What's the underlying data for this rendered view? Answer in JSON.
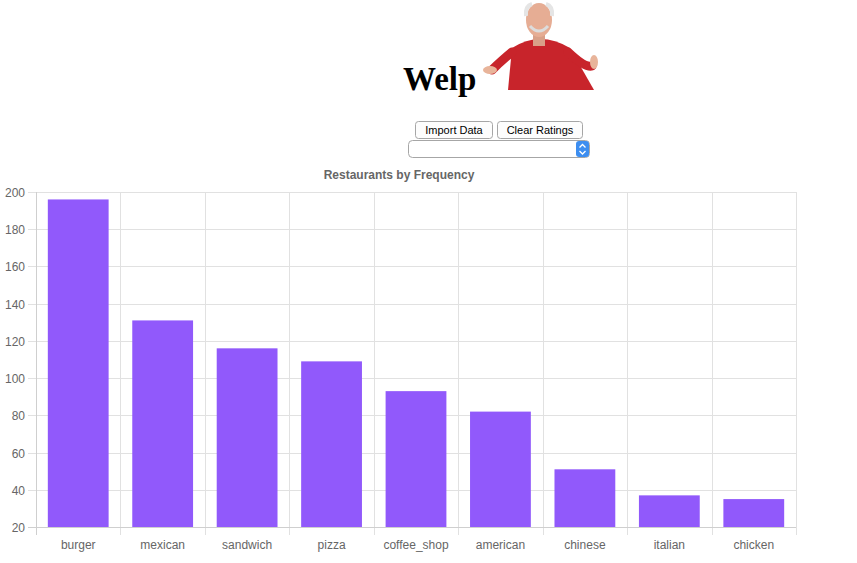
{
  "page": {
    "title": "Welp",
    "buttons": [
      "Import Data",
      "Clear Ratings"
    ]
  },
  "chart_data": {
    "type": "bar",
    "title": "Restaurants by Frequency",
    "categories": [
      "burger",
      "mexican",
      "sandwich",
      "pizza",
      "coffee_shop",
      "american",
      "chinese",
      "italian",
      "chicken"
    ],
    "values": [
      196,
      131,
      116,
      109,
      93,
      82,
      51,
      37,
      35
    ],
    "color": "#9159fb",
    "ylim": [
      20,
      200
    ],
    "yticks": [
      20,
      40,
      60,
      80,
      100,
      120,
      140,
      160,
      180,
      200
    ],
    "grid": true
  }
}
